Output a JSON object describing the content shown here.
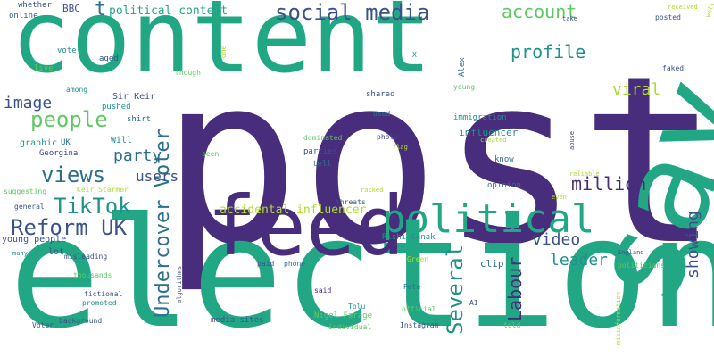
{
  "palette": {
    "purple": "#472d7b",
    "green": "#22a785",
    "teal": "#2d708e",
    "blue": "#3b528b",
    "lime": "#addc30",
    "yellowgreen": "#5ec962",
    "darkteal": "#21918c",
    "navy": "#414487"
  },
  "words": [
    {
      "id": "post",
      "text": "post",
      "color": "purple",
      "weight": 1.0
    },
    {
      "id": "election",
      "text": "election",
      "color": "green",
      "weight": 0.95
    },
    {
      "id": "content",
      "text": "content",
      "color": "green",
      "weight": 0.8
    },
    {
      "id": "say",
      "text": "say",
      "color": "green",
      "weight": 0.85
    },
    {
      "id": "feed",
      "text": "feed",
      "color": "purple",
      "weight": 0.55
    },
    {
      "id": "political",
      "text": "political",
      "color": "green",
      "weight": 0.38
    },
    {
      "id": "social-media",
      "text": "social media",
      "color": "blue",
      "weight": 0.22
    },
    {
      "id": "people",
      "text": "people",
      "color": "yellowgreen",
      "weight": 0.22
    },
    {
      "id": "reform-uk",
      "text": "Reform UK",
      "color": "blue",
      "weight": 0.22
    },
    {
      "id": "tiktok",
      "text": "TikTok",
      "color": "darkteal",
      "weight": 0.22
    },
    {
      "id": "undercover-voter",
      "text": "Undercover Voter",
      "color": "teal",
      "weight": 0.22
    },
    {
      "id": "views",
      "text": "views",
      "color": "teal",
      "weight": 0.22
    },
    {
      "id": "several",
      "text": "Several",
      "color": "darkteal",
      "weight": 0.22
    },
    {
      "id": "labour",
      "text": "Labour",
      "color": "purple",
      "weight": 0.2
    },
    {
      "id": "account",
      "text": "account",
      "color": "yellowgreen",
      "weight": 0.18
    },
    {
      "id": "profile",
      "text": "profile",
      "color": "darkteal",
      "weight": 0.18
    },
    {
      "id": "million",
      "text": "million",
      "color": "purple",
      "weight": 0.18
    },
    {
      "id": "viral",
      "text": "viral",
      "color": "lime",
      "weight": 0.16
    },
    {
      "id": "showing",
      "text": "showing",
      "color": "blue",
      "weight": 0.16
    },
    {
      "id": "party",
      "text": "party",
      "color": "teal",
      "weight": 0.16
    },
    {
      "id": "video",
      "text": "video",
      "color": "blue",
      "weight": 0.16
    },
    {
      "id": "leader",
      "text": "leader",
      "color": "darkteal",
      "weight": 0.16
    },
    {
      "id": "image",
      "text": "image",
      "color": "blue",
      "weight": 0.16
    },
    {
      "id": "users",
      "text": "users",
      "color": "blue",
      "weight": 0.14
    },
    {
      "id": "t",
      "text": "t",
      "color": "teal",
      "weight": 0.18
    },
    {
      "id": "accidental-influencer",
      "text": "accidental influencer",
      "color": "lime",
      "weight": 0.11
    },
    {
      "id": "political-content",
      "text": "political content",
      "color": "green",
      "weight": 0.1
    },
    {
      "id": "bbc",
      "text": "BBC",
      "color": "blue",
      "weight": 0.08
    },
    {
      "id": "whether",
      "text": "whether",
      "color": "blue",
      "weight": 0.06
    },
    {
      "id": "online",
      "text": "online",
      "color": "blue",
      "weight": 0.06
    },
    {
      "id": "vote",
      "text": "vote",
      "color": "darkteal",
      "weight": 0.06
    },
    {
      "id": "one",
      "text": "one",
      "color": "lime",
      "weight": 0.05
    },
    {
      "id": "x",
      "text": "X",
      "color": "darkteal",
      "weight": 0.05
    },
    {
      "id": "alex",
      "text": "Alex",
      "color": "teal",
      "weight": 0.06
    },
    {
      "id": "live",
      "text": "live",
      "color": "yellowgreen",
      "weight": 0.06
    },
    {
      "id": "aged",
      "text": "aged",
      "color": "blue",
      "weight": 0.06
    },
    {
      "id": "though",
      "text": "though",
      "color": "yellowgreen",
      "weight": 0.05
    },
    {
      "id": "among",
      "text": "among",
      "color": "darkteal",
      "weight": 0.05
    },
    {
      "id": "sir-keir",
      "text": "Sir Keir",
      "color": "blue",
      "weight": 0.07
    },
    {
      "id": "pushed",
      "text": "pushed",
      "color": "darkteal",
      "weight": 0.06
    },
    {
      "id": "shirt",
      "text": "shirt",
      "color": "teal",
      "weight": 0.06
    },
    {
      "id": "shared",
      "text": "shared",
      "color": "blue",
      "weight": 0.06
    },
    {
      "id": "young",
      "text": "young",
      "color": "yellowgreen",
      "weight": 0.05
    },
    {
      "id": "immigration",
      "text": "immigration",
      "color": "darkteal",
      "weight": 0.06
    },
    {
      "id": "used",
      "text": "used",
      "color": "teal",
      "weight": 0.05
    },
    {
      "id": "graphic",
      "text": "graphic",
      "color": "darkteal",
      "weight": 0.07
    },
    {
      "id": "uk",
      "text": "UK",
      "color": "teal",
      "weight": 0.06
    },
    {
      "id": "will",
      "text": "Will",
      "color": "darkteal",
      "weight": 0.07
    },
    {
      "id": "influencer",
      "text": "influencer",
      "color": "darkteal",
      "weight": 0.07
    },
    {
      "id": "georgina",
      "text": "Georgina",
      "color": "navy",
      "weight": 0.06
    },
    {
      "id": "dominated",
      "text": "dominated",
      "color": "yellowgreen",
      "weight": 0.05
    },
    {
      "id": "photo",
      "text": "photo",
      "color": "navy",
      "weight": 0.05
    },
    {
      "id": "flag",
      "text": "flag",
      "color": "lime",
      "weight": 0.04
    },
    {
      "id": "created",
      "text": "created",
      "color": "lime",
      "weight": 0.04
    },
    {
      "id": "abuse",
      "text": "abuse",
      "color": "navy",
      "weight": 0.04
    },
    {
      "id": "seen",
      "text": "seen",
      "color": "yellowgreen",
      "weight": 0.05
    },
    {
      "id": "parties",
      "text": "parties",
      "color": "blue",
      "weight": 0.06
    },
    {
      "id": "tell",
      "text": "tell",
      "color": "teal",
      "weight": 0.06
    },
    {
      "id": "know",
      "text": "know",
      "color": "teal",
      "weight": 0.06
    },
    {
      "id": "reliable",
      "text": "reliable",
      "color": "lime",
      "weight": 0.04
    },
    {
      "id": "suggesting",
      "text": "suggesting",
      "color": "yellowgreen",
      "weight": 0.05
    },
    {
      "id": "keir-starmer",
      "text": "Keir Starmer",
      "color": "lime",
      "weight": 0.06
    },
    {
      "id": "opinion",
      "text": "opinion",
      "color": "teal",
      "weight": 0.06
    },
    {
      "id": "even",
      "text": "even",
      "color": "lime",
      "weight": 0.04
    },
    {
      "id": "general",
      "text": "general",
      "color": "blue",
      "weight": 0.05
    },
    {
      "id": "threats",
      "text": "threats",
      "color": "blue",
      "weight": 0.05
    },
    {
      "id": "racked",
      "text": "racked",
      "color": "lime",
      "weight": 0.04
    },
    {
      "id": "young-people",
      "text": "young people",
      "color": "blue",
      "weight": 0.07
    },
    {
      "id": "rishi-sunak",
      "text": "Rishi Sunak",
      "color": "darkteal",
      "weight": 0.06
    },
    {
      "id": "many",
      "text": "many",
      "color": "darkteal",
      "weight": 0.05
    },
    {
      "id": "lot",
      "text": "lot",
      "color": "blue",
      "weight": 0.06
    },
    {
      "id": "clip",
      "text": "clip",
      "color": "teal",
      "weight": 0.07
    },
    {
      "id": "misleading",
      "text": "misleading",
      "color": "blue",
      "weight": 0.05
    },
    {
      "id": "algorithms",
      "text": "algorithms",
      "color": "blue",
      "weight": 0.05
    },
    {
      "id": "green",
      "text": "Green",
      "color": "lime",
      "weight": 0.05
    },
    {
      "id": "thousands",
      "text": "thousands",
      "color": "yellowgreen",
      "weight": 0.05
    },
    {
      "id": "paid",
      "text": "paid",
      "color": "blue",
      "weight": 0.05
    },
    {
      "id": "phone",
      "text": "phone",
      "color": "teal",
      "weight": 0.05
    },
    {
      "id": "pete",
      "text": "Pete",
      "color": "teal",
      "weight": 0.05
    },
    {
      "id": "fictional",
      "text": "fictional",
      "color": "blue",
      "weight": 0.05
    },
    {
      "id": "promoted",
      "text": "promoted",
      "color": "darkteal",
      "weight": 0.05
    },
    {
      "id": "said",
      "text": "said",
      "color": "purple",
      "weight": 0.05
    },
    {
      "id": "tolu",
      "text": "Tolu",
      "color": "darkteal",
      "weight": 0.05
    },
    {
      "id": "official",
      "text": "official",
      "color": "yellowgreen",
      "weight": 0.05
    },
    {
      "id": "ai",
      "text": "AI",
      "color": "blue",
      "weight": 0.05
    },
    {
      "id": "background",
      "text": "background",
      "color": "blue",
      "weight": 0.05
    },
    {
      "id": "nigel-farage",
      "text": "Nigel Farage",
      "color": "yellowgreen",
      "weight": 0.06
    },
    {
      "id": "media-sites",
      "text": "media sites",
      "color": "blue",
      "weight": 0.06
    },
    {
      "id": "voter",
      "text": "Voter",
      "color": "blue",
      "weight": 0.05
    },
    {
      "id": "individual",
      "text": "individual",
      "color": "yellowgreen",
      "weight": 0.05
    },
    {
      "id": "instagram",
      "text": "Instagram",
      "color": "blue",
      "weight": 0.05
    },
    {
      "id": "told",
      "text": "told",
      "color": "yellowgreen",
      "weight": 0.05
    },
    {
      "id": "take",
      "text": "take",
      "color": "blue",
      "weight": 0.04
    },
    {
      "id": "received",
      "text": "received",
      "color": "lime",
      "weight": 0.04
    },
    {
      "id": "well",
      "text": "well",
      "color": "lime",
      "weight": 0.04
    },
    {
      "id": "posted",
      "text": "posted",
      "color": "blue",
      "weight": 0.05
    },
    {
      "id": "faked",
      "text": "faked",
      "color": "blue",
      "weight": 0.05
    },
    {
      "id": "england",
      "text": "England",
      "color": "blue",
      "weight": 0.04
    },
    {
      "id": "politicians",
      "text": "politicians",
      "color": "yellowgreen",
      "weight": 0.05
    },
    {
      "id": "misinformation",
      "text": "misinformation",
      "color": "lime",
      "weight": 0.04
    }
  ]
}
